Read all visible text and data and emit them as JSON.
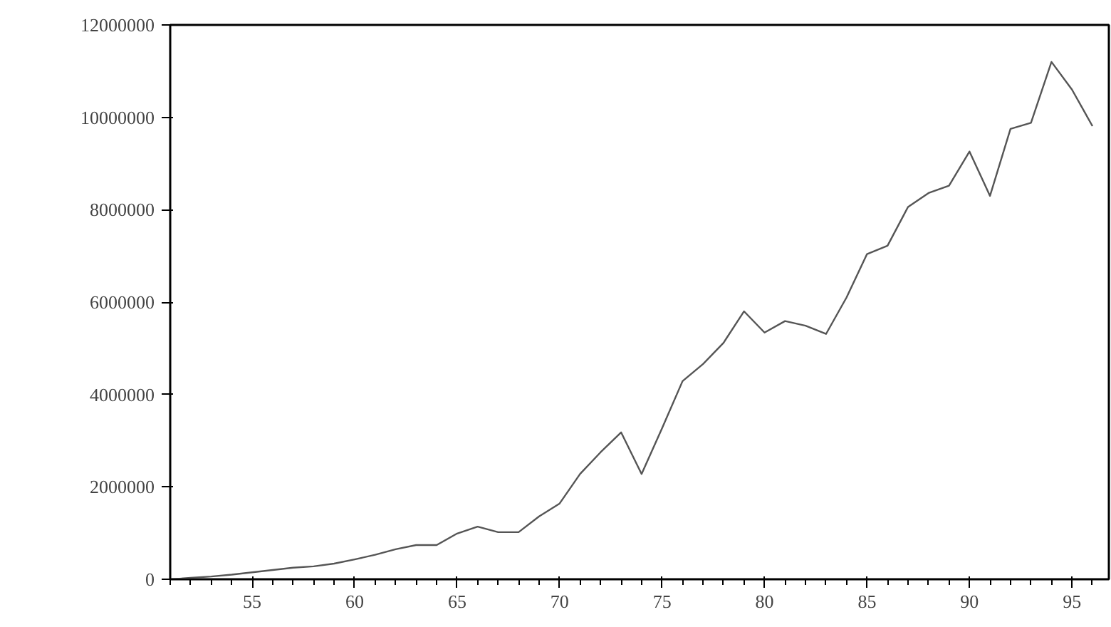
{
  "chart_data": {
    "type": "line",
    "x": [
      51,
      52,
      53,
      54,
      55,
      56,
      57,
      58,
      59,
      60,
      61,
      62,
      63,
      64,
      65,
      66,
      67,
      68,
      69,
      70,
      71,
      72,
      73,
      74,
      75,
      76,
      77,
      78,
      79,
      80,
      81,
      82,
      83,
      84,
      85,
      86,
      87,
      88,
      89,
      90,
      91,
      92,
      93,
      94,
      95,
      96
    ],
    "series": [
      {
        "color": "#555555",
        "values": [
          0,
          30000,
          60000,
          100000,
          150000,
          200000,
          250000,
          280000,
          340000,
          430000,
          530000,
          650000,
          740000,
          740000,
          990000,
          1140000,
          1020000,
          1020000,
          1360000,
          1640000,
          2280000,
          2750000,
          3180000,
          2280000,
          3270000,
          4290000,
          4660000,
          5120000,
          5800000,
          5340000,
          5590000,
          5490000,
          5310000,
          6100000,
          7040000,
          7220000,
          8060000,
          8360000,
          8520000,
          9260000,
          8300000,
          9750000,
          9880000,
          11200000,
          10600000,
          9810000
        ]
      }
    ],
    "xlim": [
      51,
      96.8
    ],
    "xticks": [
      55,
      60,
      65,
      70,
      75,
      80,
      85,
      90,
      95
    ],
    "ylim": [
      0,
      12000000
    ],
    "yticks": [
      0,
      2000000,
      4000000,
      6000000,
      8000000,
      10000000,
      12000000
    ],
    "grid": false,
    "marker": "none",
    "line_style": "solid"
  }
}
